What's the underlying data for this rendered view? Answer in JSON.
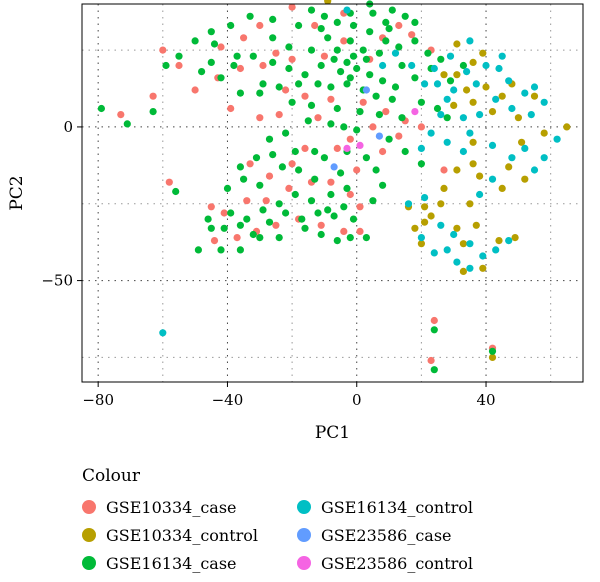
{
  "chart_data": {
    "type": "scatter",
    "title": "",
    "xlabel": "PC1",
    "ylabel": "PC2",
    "xlim": [
      -85,
      70
    ],
    "ylim": [
      -83,
      40
    ],
    "x_ticks": [
      -80,
      -40,
      0,
      40
    ],
    "y_ticks": [
      -50,
      0
    ],
    "x_tick_labels": [
      "−80",
      "−40",
      "0",
      "40"
    ],
    "y_tick_labels": [
      "−50",
      "0"
    ],
    "grid": "dotted",
    "legend": {
      "title": "Colour",
      "placement": "bottom"
    },
    "series": [
      {
        "name": "GSE10334_case",
        "color": "#F8766D",
        "points": [
          [
            -20,
            39
          ],
          [
            -30,
            33
          ],
          [
            -42,
            26
          ],
          [
            -35,
            29
          ],
          [
            -25,
            24
          ],
          [
            -13,
            33
          ],
          [
            -4,
            37
          ],
          [
            8,
            29
          ],
          [
            13,
            33
          ],
          [
            -60,
            25
          ],
          [
            -63,
            10
          ],
          [
            -73,
            4
          ],
          [
            -43,
            16
          ],
          [
            -36,
            19
          ],
          [
            -29,
            20
          ],
          [
            -20,
            22
          ],
          [
            -10,
            23
          ],
          [
            -4,
            28
          ],
          [
            4,
            22
          ],
          [
            17,
            30
          ],
          [
            23,
            25
          ],
          [
            -22,
            12
          ],
          [
            -16,
            10
          ],
          [
            -8,
            9
          ],
          [
            2,
            8
          ],
          [
            9,
            5
          ],
          [
            15,
            2
          ],
          [
            20,
            0
          ],
          [
            -39,
            6
          ],
          [
            -30,
            3
          ],
          [
            -24,
            4
          ],
          [
            -12,
            3
          ],
          [
            5,
            0
          ],
          [
            -58,
            -18
          ],
          [
            -45,
            -26
          ],
          [
            -41,
            -28
          ],
          [
            -34,
            -24
          ],
          [
            -28,
            -24
          ],
          [
            -21,
            -20
          ],
          [
            -14,
            -18
          ],
          [
            -8,
            -18
          ],
          [
            -2,
            -22
          ],
          [
            1,
            -26
          ],
          [
            -44,
            -37
          ],
          [
            -37,
            -36
          ],
          [
            -31,
            -34
          ],
          [
            -25,
            -32
          ],
          [
            -18,
            -30
          ],
          [
            -11,
            -32
          ],
          [
            -4,
            -34
          ],
          [
            1,
            -34
          ],
          [
            13,
            -3
          ],
          [
            27,
            -14
          ],
          [
            24,
            -63
          ],
          [
            23,
            -76
          ],
          [
            42,
            -72
          ],
          [
            -16,
            -7
          ],
          [
            -20,
            -12
          ],
          [
            -27,
            -16
          ],
          [
            -6,
            -7
          ],
          [
            -2,
            -4
          ],
          [
            8,
            -8
          ],
          [
            -33,
            -12
          ],
          [
            0,
            -14
          ],
          [
            -50,
            12
          ],
          [
            -55,
            20
          ]
        ]
      },
      {
        "name": "GSE10334_control",
        "color": "#B79F00",
        "points": [
          [
            -9,
            41
          ],
          [
            27,
            17
          ],
          [
            31,
            27
          ],
          [
            36,
            21
          ],
          [
            39,
            24
          ],
          [
            31,
            17
          ],
          [
            34,
            12
          ],
          [
            40,
            13
          ],
          [
            45,
            10
          ],
          [
            30,
            7
          ],
          [
            36,
            8
          ],
          [
            42,
            5
          ],
          [
            50,
            3
          ],
          [
            55,
            10
          ],
          [
            48,
            14
          ],
          [
            65,
            0
          ],
          [
            58,
            -2
          ],
          [
            36,
            -5
          ],
          [
            36,
            -12
          ],
          [
            38,
            -16
          ],
          [
            31,
            -14
          ],
          [
            51,
            -5
          ],
          [
            27,
            -20
          ],
          [
            35,
            -25
          ],
          [
            16,
            -26
          ],
          [
            18,
            -33
          ],
          [
            20,
            -38
          ],
          [
            21,
            -26
          ],
          [
            23,
            -29
          ],
          [
            26,
            -25
          ],
          [
            31,
            -33
          ],
          [
            33,
            -38
          ],
          [
            33,
            -47
          ],
          [
            39,
            -46
          ],
          [
            44,
            -37
          ],
          [
            49,
            -36
          ],
          [
            42,
            -75
          ],
          [
            21,
            -31
          ],
          [
            37,
            -32
          ],
          [
            45,
            -20
          ],
          [
            47,
            -13
          ],
          [
            52,
            -17
          ]
        ]
      },
      {
        "name": "GSE16134_case",
        "color": "#00BA38",
        "points": [
          [
            -18,
            33
          ],
          [
            -11,
            32
          ],
          [
            -6,
            34
          ],
          [
            -1,
            33
          ],
          [
            -26,
            29
          ],
          [
            -21,
            26
          ],
          [
            -14,
            25
          ],
          [
            -9,
            29
          ],
          [
            -6,
            25
          ],
          [
            -2,
            28
          ],
          [
            2,
            25
          ],
          [
            4,
            31
          ],
          [
            9,
            34
          ],
          [
            -32,
            23
          ],
          [
            -26,
            21
          ],
          [
            -21,
            19
          ],
          [
            -16,
            17
          ],
          [
            -11,
            20
          ],
          [
            -7,
            22
          ],
          [
            -3,
            21
          ],
          [
            0,
            19
          ],
          [
            4,
            17
          ],
          [
            8,
            15
          ],
          [
            12,
            13
          ],
          [
            -38,
            20
          ],
          [
            -29,
            14
          ],
          [
            -24,
            13
          ],
          [
            -18,
            14
          ],
          [
            -12,
            14
          ],
          [
            -8,
            13
          ],
          [
            -3,
            14
          ],
          [
            2,
            12
          ],
          [
            6,
            10
          ],
          [
            11,
            9
          ],
          [
            -37,
            23
          ],
          [
            -42,
            16
          ],
          [
            -36,
            11
          ],
          [
            -30,
            11
          ],
          [
            -20,
            8
          ],
          [
            -14,
            7
          ],
          [
            -6,
            6
          ],
          [
            1,
            5
          ],
          [
            7,
            4
          ],
          [
            14,
            3
          ],
          [
            -2,
            16
          ],
          [
            -5,
            18
          ],
          [
            -1,
            23
          ],
          [
            3,
            22
          ],
          [
            7,
            24
          ],
          [
            9,
            28
          ],
          [
            13,
            26
          ],
          [
            18,
            28
          ],
          [
            22,
            24
          ],
          [
            -79,
            6
          ],
          [
            -59,
            20
          ],
          [
            -63,
            5
          ],
          [
            -71,
            1
          ],
          [
            -56,
            -21
          ],
          [
            -40,
            -20
          ],
          [
            -35,
            -17
          ],
          [
            -30,
            -19
          ],
          [
            -23,
            -13
          ],
          [
            -18,
            -14
          ],
          [
            -13,
            -17
          ],
          [
            -8,
            -22
          ],
          [
            -3,
            -20
          ],
          [
            -39,
            -28
          ],
          [
            -34,
            -30
          ],
          [
            -29,
            -27
          ],
          [
            -24,
            -25
          ],
          [
            -19,
            -22
          ],
          [
            -14,
            -24
          ],
          [
            -9,
            -27
          ],
          [
            -4,
            -26
          ],
          [
            -41,
            -33
          ],
          [
            -36,
            -32
          ],
          [
            -32,
            -35
          ],
          [
            -27,
            -31
          ],
          [
            -22,
            -28
          ],
          [
            -17,
            -30
          ],
          [
            -12,
            -28
          ],
          [
            -7,
            -29
          ],
          [
            -1,
            -30
          ],
          [
            -36,
            -40
          ],
          [
            -30,
            -36
          ],
          [
            -24,
            -36
          ],
          [
            -16,
            -33
          ],
          [
            -11,
            -35
          ],
          [
            -6,
            -37
          ],
          [
            -2,
            -36
          ],
          [
            3,
            -36
          ],
          [
            -42,
            -40
          ],
          [
            -45,
            -33
          ],
          [
            -46,
            -30
          ],
          [
            -49,
            -40
          ],
          [
            -10,
            -10
          ],
          [
            -5,
            -15
          ],
          [
            -13,
            -8
          ],
          [
            -19,
            -8
          ],
          [
            -26,
            -9
          ],
          [
            -31,
            -10
          ],
          [
            -36,
            -13
          ],
          [
            -3,
            -8
          ],
          [
            3,
            -10
          ],
          [
            6,
            -14
          ],
          [
            8,
            -19
          ],
          [
            5,
            -24
          ],
          [
            24,
            -79
          ],
          [
            24,
            -66
          ],
          [
            42,
            -73
          ],
          [
            0,
            -1
          ],
          [
            -8,
            1
          ],
          [
            -15,
            2
          ],
          [
            -22,
            -2
          ],
          [
            -27,
            -4
          ],
          [
            14,
            20
          ],
          [
            18,
            16
          ],
          [
            23,
            19
          ],
          [
            26,
            22
          ],
          [
            29,
            15
          ],
          [
            33,
            20
          ],
          [
            -44,
            27
          ],
          [
            -45,
            21
          ],
          [
            -50,
            28
          ],
          [
            -55,
            23
          ],
          [
            -48,
            18
          ],
          [
            15,
            36
          ],
          [
            18,
            34
          ],
          [
            11,
            38
          ],
          [
            4,
            40
          ],
          [
            -2,
            37
          ],
          [
            5,
            37
          ],
          [
            10,
            32
          ],
          [
            -10,
            36
          ],
          [
            -14,
            38
          ],
          [
            -26,
            35
          ],
          [
            -33,
            36
          ],
          [
            -39,
            33
          ],
          [
            -45,
            31
          ],
          [
            20,
            8
          ],
          [
            25,
            6
          ],
          [
            28,
            3
          ],
          [
            -4,
            0
          ],
          [
            10,
            -4
          ],
          [
            15,
            -8
          ],
          [
            20,
            -12
          ]
        ]
      },
      {
        "name": "GSE16134_control",
        "color": "#00BFC4",
        "points": [
          [
            -3,
            38
          ],
          [
            24,
            19
          ],
          [
            29,
            23
          ],
          [
            34,
            18
          ],
          [
            37,
            14
          ],
          [
            40,
            20
          ],
          [
            44,
            19
          ],
          [
            47,
            15
          ],
          [
            52,
            11
          ],
          [
            55,
            13
          ],
          [
            58,
            8
          ],
          [
            62,
            -4
          ],
          [
            54,
            4
          ],
          [
            48,
            6
          ],
          [
            43,
            9
          ],
          [
            38,
            4
          ],
          [
            33,
            3
          ],
          [
            28,
            9
          ],
          [
            25,
            14
          ],
          [
            30,
            12
          ],
          [
            35,
            -2
          ],
          [
            42,
            -6
          ],
          [
            48,
            -10
          ],
          [
            52,
            -7
          ],
          [
            55,
            -14
          ],
          [
            33,
            -8
          ],
          [
            28,
            -5
          ],
          [
            23,
            -2
          ],
          [
            20,
            -7
          ],
          [
            16,
            -25
          ],
          [
            21,
            -23
          ],
          [
            26,
            -32
          ],
          [
            30,
            -35
          ],
          [
            35,
            -38
          ],
          [
            39,
            -42
          ],
          [
            43,
            -40
          ],
          [
            47,
            -37
          ],
          [
            20,
            -36
          ],
          [
            24,
            -41
          ],
          [
            28,
            -40
          ],
          [
            31,
            -44
          ],
          [
            35,
            -46
          ],
          [
            -60,
            -67
          ],
          [
            12,
            24
          ],
          [
            8,
            20
          ],
          [
            17,
            20
          ],
          [
            21,
            14
          ],
          [
            26,
            4
          ],
          [
            35,
            28
          ],
          [
            45,
            23
          ],
          [
            58,
            -10
          ],
          [
            42,
            -17
          ],
          [
            38,
            -22
          ]
        ]
      },
      {
        "name": "GSE23586_case",
        "color": "#619CFF",
        "points": [
          [
            -7,
            -13
          ],
          [
            7,
            -3
          ],
          [
            3,
            12
          ]
        ]
      },
      {
        "name": "GSE23586_control",
        "color": "#F564E3",
        "points": [
          [
            -3,
            -7
          ],
          [
            1,
            -6
          ],
          [
            18,
            5
          ]
        ]
      }
    ]
  }
}
